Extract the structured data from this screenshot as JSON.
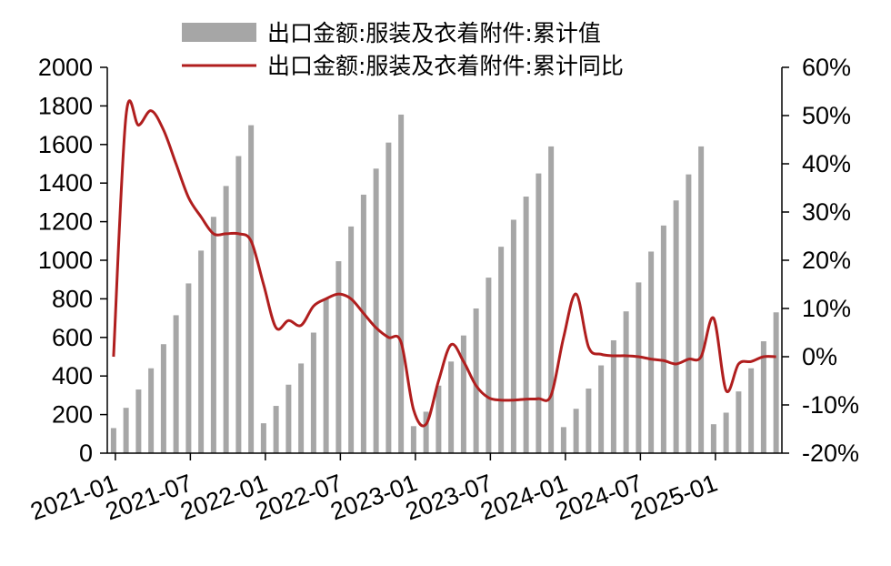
{
  "chart_data": {
    "type": "bar+line",
    "legend_position": "top",
    "grid": false,
    "x_tick_labels": [
      "2021-01",
      "2021-07",
      "2022-01",
      "2022-07",
      "2023-01",
      "2023-07",
      "2024-01",
      "2024-07",
      "2025-01"
    ],
    "y_left": {
      "lim": [
        0,
        2000
      ],
      "ticks": [
        "0",
        "200",
        "400",
        "600",
        "800",
        "1000",
        "1200",
        "1400",
        "1600",
        "1800",
        "2000"
      ]
    },
    "y_right": {
      "lim": [
        -0.2,
        0.6
      ],
      "ticks": [
        "-20%",
        "-10%",
        "0%",
        "10%",
        "20%",
        "30%",
        "40%",
        "50%",
        "60%"
      ]
    },
    "colors": {
      "bars": "#a6a6a6",
      "line": "#b01e1e",
      "axis": "#000000"
    },
    "series": [
      {
        "name": "出口金额:服装及衣着附件:累计值",
        "type": "bar",
        "axis": "left",
        "x": [
          "2021-01",
          "2021-02",
          "2021-03",
          "2021-04",
          "2021-05",
          "2021-06",
          "2021-07",
          "2021-08",
          "2021-09",
          "2021-10",
          "2021-11",
          "2021-12",
          "2022-01",
          "2022-02",
          "2022-03",
          "2022-04",
          "2022-05",
          "2022-06",
          "2022-07",
          "2022-08",
          "2022-09",
          "2022-10",
          "2022-11",
          "2022-12",
          "2023-01",
          "2023-02",
          "2023-03",
          "2023-04",
          "2023-05",
          "2023-06",
          "2023-07",
          "2023-08",
          "2023-09",
          "2023-10",
          "2023-11",
          "2023-12",
          "2024-01",
          "2024-02",
          "2024-03",
          "2024-04",
          "2024-05",
          "2024-06",
          "2024-07",
          "2024-08",
          "2024-09",
          "2024-10",
          "2024-11",
          "2024-12",
          "2025-01",
          "2025-02",
          "2025-03",
          "2025-04",
          "2025-05",
          "2025-06"
        ],
        "values": [
          130,
          235,
          330,
          440,
          565,
          715,
          880,
          1050,
          1225,
          1385,
          1540,
          1700,
          155,
          245,
          355,
          465,
          625,
          800,
          995,
          1175,
          1340,
          1475,
          1610,
          1755,
          140,
          215,
          350,
          475,
          610,
          750,
          910,
          1070,
          1210,
          1330,
          1450,
          1590,
          135,
          230,
          335,
          455,
          585,
          735,
          885,
          1045,
          1180,
          1310,
          1445,
          1590,
          150,
          210,
          320,
          440,
          580,
          730
        ]
      },
      {
        "name": "出口金额:服装及衣着附件:累计同比",
        "type": "line",
        "axis": "right",
        "x": [
          "2021-01",
          "2021-02",
          "2021-03",
          "2021-04",
          "2021-05",
          "2021-06",
          "2021-07",
          "2021-08",
          "2021-09",
          "2021-10",
          "2021-11",
          "2021-12",
          "2022-01",
          "2022-02",
          "2022-03",
          "2022-04",
          "2022-05",
          "2022-06",
          "2022-07",
          "2022-08",
          "2022-09",
          "2022-10",
          "2022-11",
          "2022-12",
          "2023-01",
          "2023-02",
          "2023-03",
          "2023-04",
          "2023-05",
          "2023-06",
          "2023-07",
          "2023-08",
          "2023-09",
          "2023-10",
          "2023-11",
          "2023-12",
          "2024-01",
          "2024-02",
          "2024-03",
          "2024-04",
          "2024-05",
          "2024-06",
          "2024-07",
          "2024-08",
          "2024-09",
          "2024-10",
          "2024-11",
          "2024-12",
          "2025-01",
          "2025-02",
          "2025-03",
          "2025-04",
          "2025-05",
          "2025-06"
        ],
        "values": [
          0.0,
          0.5,
          0.48,
          0.51,
          0.47,
          0.4,
          0.33,
          0.29,
          0.255,
          0.255,
          0.255,
          0.24,
          0.15,
          0.06,
          0.075,
          0.065,
          0.105,
          0.12,
          0.13,
          0.12,
          0.09,
          0.06,
          0.04,
          0.03,
          -0.11,
          -0.14,
          -0.05,
          0.025,
          -0.01,
          -0.06,
          -0.085,
          -0.09,
          -0.09,
          -0.088,
          -0.087,
          -0.08,
          0.04,
          0.13,
          0.02,
          0.005,
          0.002,
          0.002,
          0.0,
          -0.005,
          -0.008,
          -0.015,
          -0.005,
          0.0,
          0.08,
          -0.07,
          -0.015,
          -0.01,
          0.0,
          0.0
        ]
      }
    ]
  }
}
